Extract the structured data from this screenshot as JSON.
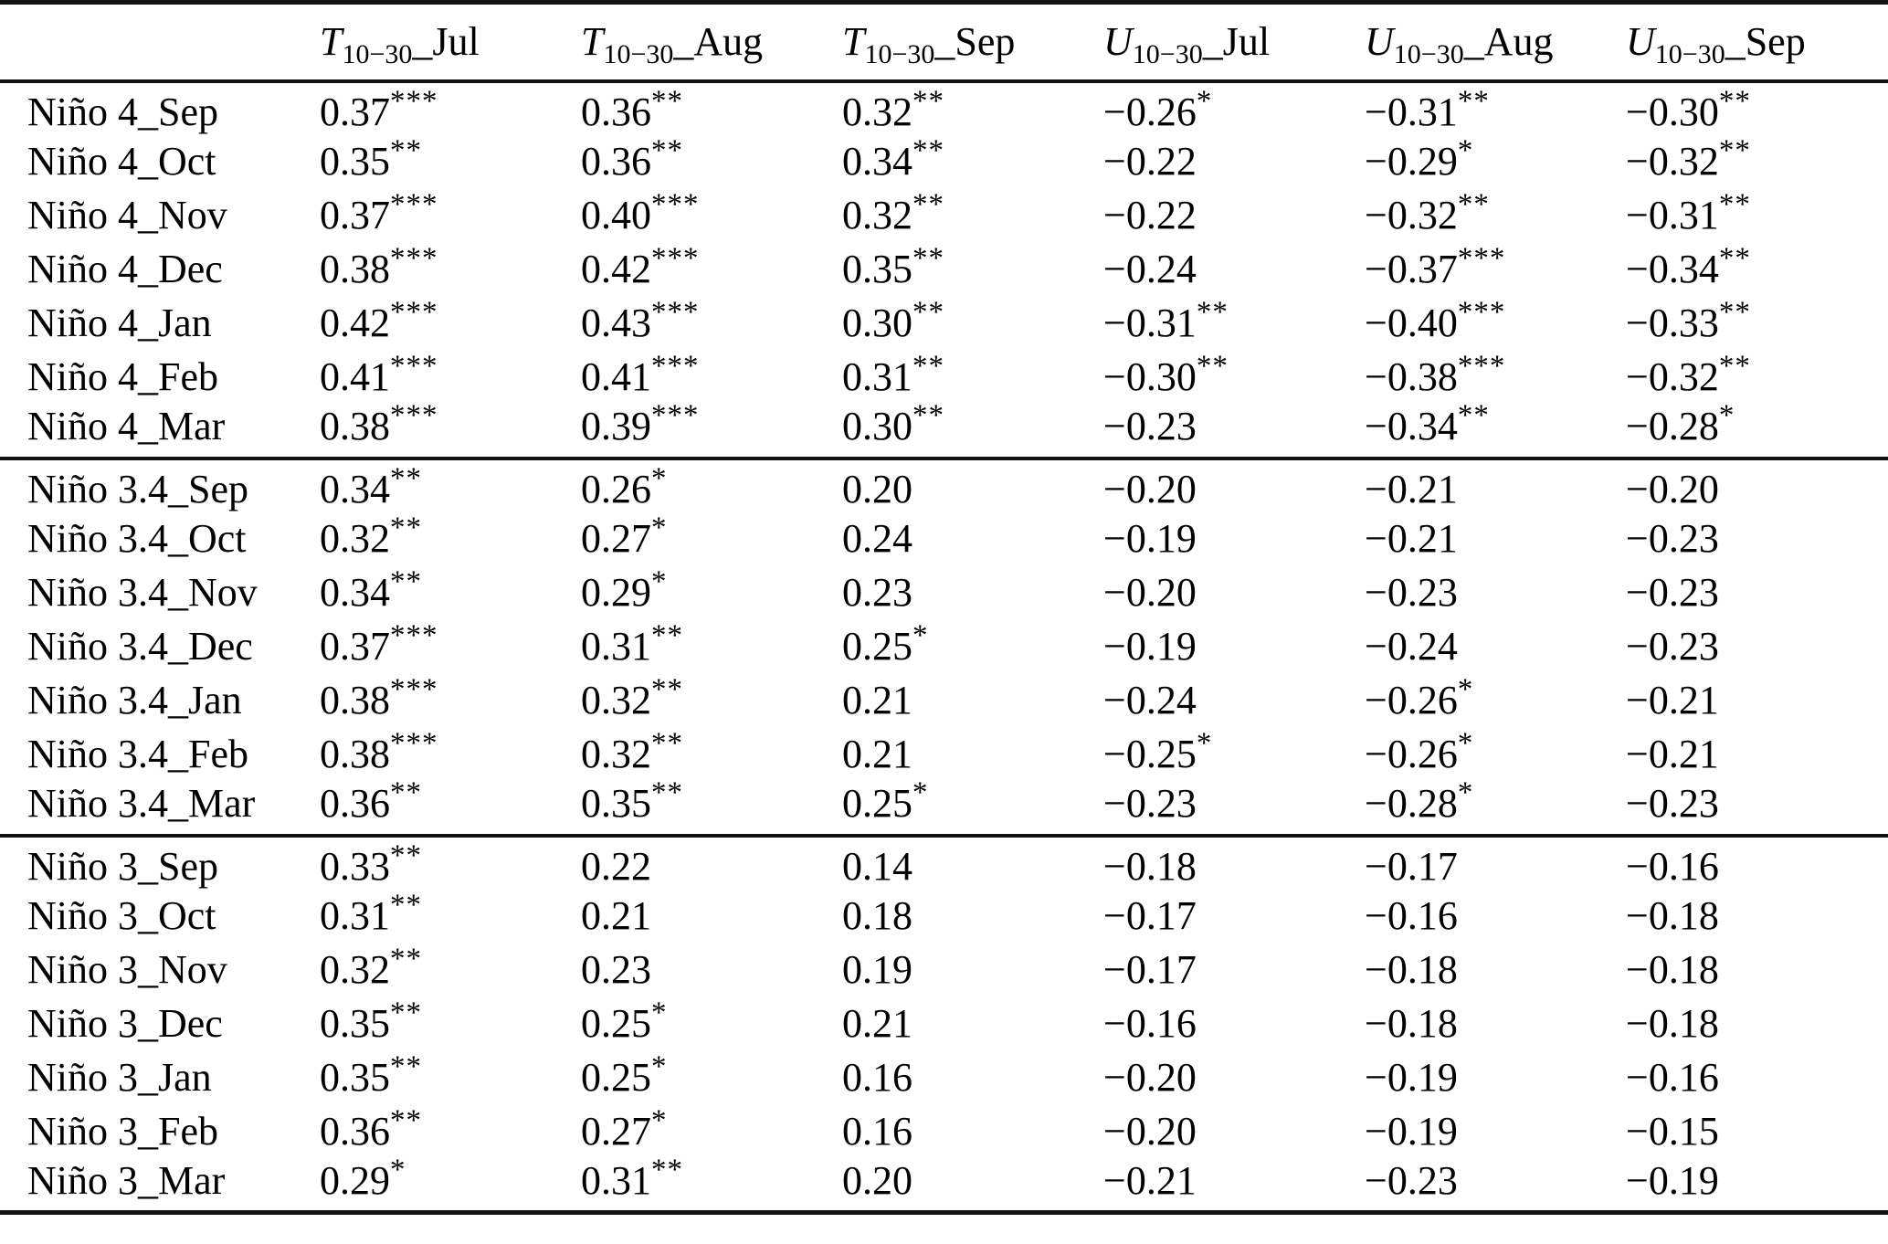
{
  "table": {
    "headers": [
      {
        "variable": "T",
        "subscript": "10−30",
        "suffix": "_Jul"
      },
      {
        "variable": "T",
        "subscript": "10−30",
        "suffix": "_Aug"
      },
      {
        "variable": "T",
        "subscript": "10−30",
        "suffix": "_Sep"
      },
      {
        "variable": "U",
        "subscript": "10−30",
        "suffix": "_Jul"
      },
      {
        "variable": "U",
        "subscript": "10−30",
        "suffix": "_Aug"
      },
      {
        "variable": "U",
        "subscript": "10−30",
        "suffix": "_Sep"
      }
    ],
    "groups": [
      {
        "name": "Nino 4",
        "rows": [
          {
            "label": "Niño 4_Sep",
            "cells": [
              {
                "v": "0.37",
                "s": "***"
              },
              {
                "v": "0.36",
                "s": "**"
              },
              {
                "v": "0.32",
                "s": "**"
              },
              {
                "v": "−0.26",
                "s": "*"
              },
              {
                "v": "−0.31",
                "s": "**"
              },
              {
                "v": "−0.30",
                "s": "**"
              }
            ]
          },
          {
            "label": "Niño 4_Oct",
            "cells": [
              {
                "v": "0.35",
                "s": "**"
              },
              {
                "v": "0.36",
                "s": "**"
              },
              {
                "v": "0.34",
                "s": "**"
              },
              {
                "v": "−0.22",
                "s": ""
              },
              {
                "v": "−0.29",
                "s": "*"
              },
              {
                "v": "−0.32",
                "s": "**"
              }
            ]
          },
          {
            "label": "Niño 4_Nov",
            "cells": [
              {
                "v": "0.37",
                "s": "***"
              },
              {
                "v": "0.40",
                "s": "***"
              },
              {
                "v": "0.32",
                "s": "**"
              },
              {
                "v": "−0.22",
                "s": ""
              },
              {
                "v": "−0.32",
                "s": "**"
              },
              {
                "v": "−0.31",
                "s": "**"
              }
            ]
          },
          {
            "label": "Niño 4_Dec",
            "cells": [
              {
                "v": "0.38",
                "s": "***"
              },
              {
                "v": "0.42",
                "s": "***"
              },
              {
                "v": "0.35",
                "s": "**"
              },
              {
                "v": "−0.24",
                "s": ""
              },
              {
                "v": "−0.37",
                "s": "***"
              },
              {
                "v": "−0.34",
                "s": "**"
              }
            ]
          },
          {
            "label": "Niño 4_Jan",
            "cells": [
              {
                "v": "0.42",
                "s": "***"
              },
              {
                "v": "0.43",
                "s": "***"
              },
              {
                "v": "0.30",
                "s": "**"
              },
              {
                "v": "−0.31",
                "s": "**"
              },
              {
                "v": "−0.40",
                "s": "***"
              },
              {
                "v": "−0.33",
                "s": "**"
              }
            ]
          },
          {
            "label": "Niño 4_Feb",
            "cells": [
              {
                "v": "0.41",
                "s": "***"
              },
              {
                "v": "0.41",
                "s": "***"
              },
              {
                "v": "0.31",
                "s": "**"
              },
              {
                "v": "−0.30",
                "s": "**"
              },
              {
                "v": "−0.38",
                "s": "***"
              },
              {
                "v": "−0.32",
                "s": "**"
              }
            ]
          },
          {
            "label": "Niño 4_Mar",
            "cells": [
              {
                "v": "0.38",
                "s": "***"
              },
              {
                "v": "0.39",
                "s": "***"
              },
              {
                "v": "0.30",
                "s": "**"
              },
              {
                "v": "−0.23",
                "s": ""
              },
              {
                "v": "−0.34",
                "s": "**"
              },
              {
                "v": "−0.28",
                "s": "*"
              }
            ]
          }
        ]
      },
      {
        "name": "Nino 3.4",
        "rows": [
          {
            "label": "Niño 3.4_Sep",
            "cells": [
              {
                "v": "0.34",
                "s": "**"
              },
              {
                "v": "0.26",
                "s": "*"
              },
              {
                "v": "0.20",
                "s": ""
              },
              {
                "v": "−0.20",
                "s": ""
              },
              {
                "v": "−0.21",
                "s": ""
              },
              {
                "v": "−0.20",
                "s": ""
              }
            ]
          },
          {
            "label": "Niño 3.4_Oct",
            "cells": [
              {
                "v": "0.32",
                "s": "**"
              },
              {
                "v": "0.27",
                "s": "*"
              },
              {
                "v": "0.24",
                "s": ""
              },
              {
                "v": "−0.19",
                "s": ""
              },
              {
                "v": "−0.21",
                "s": ""
              },
              {
                "v": "−0.23",
                "s": ""
              }
            ]
          },
          {
            "label": "Niño 3.4_Nov",
            "cells": [
              {
                "v": "0.34",
                "s": "**"
              },
              {
                "v": "0.29",
                "s": "*"
              },
              {
                "v": "0.23",
                "s": ""
              },
              {
                "v": "−0.20",
                "s": ""
              },
              {
                "v": "−0.23",
                "s": ""
              },
              {
                "v": "−0.23",
                "s": ""
              }
            ]
          },
          {
            "label": "Niño 3.4_Dec",
            "cells": [
              {
                "v": "0.37",
                "s": "***"
              },
              {
                "v": "0.31",
                "s": "**"
              },
              {
                "v": "0.25",
                "s": "*"
              },
              {
                "v": "−0.19",
                "s": ""
              },
              {
                "v": "−0.24",
                "s": ""
              },
              {
                "v": "−0.23",
                "s": ""
              }
            ]
          },
          {
            "label": "Niño 3.4_Jan",
            "cells": [
              {
                "v": "0.38",
                "s": "***"
              },
              {
                "v": "0.32",
                "s": "**"
              },
              {
                "v": "0.21",
                "s": ""
              },
              {
                "v": "−0.24",
                "s": ""
              },
              {
                "v": "−0.26",
                "s": "*"
              },
              {
                "v": "−0.21",
                "s": ""
              }
            ]
          },
          {
            "label": "Niño 3.4_Feb",
            "cells": [
              {
                "v": "0.38",
                "s": "***"
              },
              {
                "v": "0.32",
                "s": "**"
              },
              {
                "v": "0.21",
                "s": ""
              },
              {
                "v": "−0.25",
                "s": "*"
              },
              {
                "v": "−0.26",
                "s": "*"
              },
              {
                "v": "−0.21",
                "s": ""
              }
            ]
          },
          {
            "label": "Niño 3.4_Mar",
            "cells": [
              {
                "v": "0.36",
                "s": "**"
              },
              {
                "v": "0.35",
                "s": "**"
              },
              {
                "v": "0.25",
                "s": "*"
              },
              {
                "v": "−0.23",
                "s": ""
              },
              {
                "v": "−0.28",
                "s": "*"
              },
              {
                "v": "−0.23",
                "s": ""
              }
            ]
          }
        ]
      },
      {
        "name": "Nino 3",
        "rows": [
          {
            "label": "Niño 3_Sep",
            "cells": [
              {
                "v": "0.33",
                "s": "**"
              },
              {
                "v": "0.22",
                "s": ""
              },
              {
                "v": "0.14",
                "s": ""
              },
              {
                "v": "−0.18",
                "s": ""
              },
              {
                "v": "−0.17",
                "s": ""
              },
              {
                "v": "−0.16",
                "s": ""
              }
            ]
          },
          {
            "label": "Niño 3_Oct",
            "cells": [
              {
                "v": "0.31",
                "s": "**"
              },
              {
                "v": "0.21",
                "s": ""
              },
              {
                "v": "0.18",
                "s": ""
              },
              {
                "v": "−0.17",
                "s": ""
              },
              {
                "v": "−0.16",
                "s": ""
              },
              {
                "v": "−0.18",
                "s": ""
              }
            ]
          },
          {
            "label": "Niño 3_Nov",
            "cells": [
              {
                "v": "0.32",
                "s": "**"
              },
              {
                "v": "0.23",
                "s": ""
              },
              {
                "v": "0.19",
                "s": ""
              },
              {
                "v": "−0.17",
                "s": ""
              },
              {
                "v": "−0.18",
                "s": ""
              },
              {
                "v": "−0.18",
                "s": ""
              }
            ]
          },
          {
            "label": "Niño 3_Dec",
            "cells": [
              {
                "v": "0.35",
                "s": "**"
              },
              {
                "v": "0.25",
                "s": "*"
              },
              {
                "v": "0.21",
                "s": ""
              },
              {
                "v": "−0.16",
                "s": ""
              },
              {
                "v": "−0.18",
                "s": ""
              },
              {
                "v": "−0.18",
                "s": ""
              }
            ]
          },
          {
            "label": "Niño 3_Jan",
            "cells": [
              {
                "v": "0.35",
                "s": "**"
              },
              {
                "v": "0.25",
                "s": "*"
              },
              {
                "v": "0.16",
                "s": ""
              },
              {
                "v": "−0.20",
                "s": ""
              },
              {
                "v": "−0.19",
                "s": ""
              },
              {
                "v": "−0.16",
                "s": ""
              }
            ]
          },
          {
            "label": "Niño 3_Feb",
            "cells": [
              {
                "v": "0.36",
                "s": "**"
              },
              {
                "v": "0.27",
                "s": "*"
              },
              {
                "v": "0.16",
                "s": ""
              },
              {
                "v": "−0.20",
                "s": ""
              },
              {
                "v": "−0.19",
                "s": ""
              },
              {
                "v": "−0.15",
                "s": ""
              }
            ]
          },
          {
            "label": "Niño 3_Mar",
            "cells": [
              {
                "v": "0.29",
                "s": "*"
              },
              {
                "v": "0.31",
                "s": "**"
              },
              {
                "v": "0.20",
                "s": ""
              },
              {
                "v": "−0.21",
                "s": ""
              },
              {
                "v": "−0.23",
                "s": ""
              },
              {
                "v": "−0.19",
                "s": ""
              }
            ]
          }
        ]
      }
    ]
  }
}
